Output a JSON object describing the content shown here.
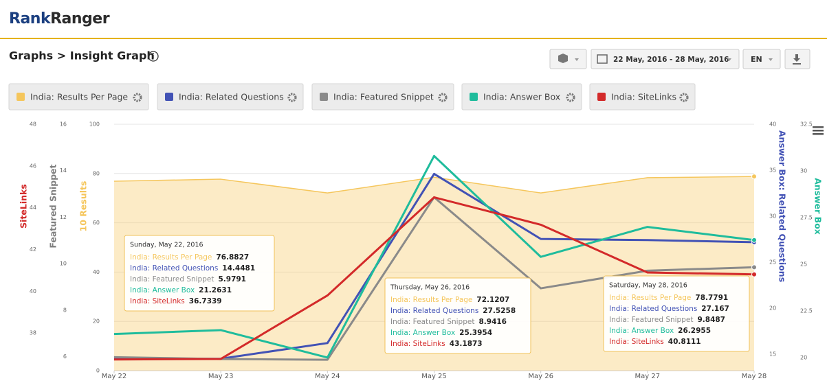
{
  "header": {
    "logo_first": "Rank",
    "logo_second": "Ranger",
    "breadcrumb": "Graphs > Insight Graph",
    "date_range": "22 May, 2016 - 28 May, 2016",
    "language": "EN"
  },
  "chart_data": {
    "type": "line",
    "categories": [
      "May 22",
      "May 23",
      "May 24",
      "May 25",
      "May 26",
      "May 27",
      "May 28"
    ],
    "axes": [
      {
        "title": "SiteLinks",
        "side": "left",
        "color": "#d32a2a",
        "lim": [
          36.2,
          48
        ],
        "ticks": [
          38,
          40,
          42,
          44,
          46,
          48
        ]
      },
      {
        "title": "Featured Snippet",
        "side": "left",
        "color": "#7f7f7f",
        "lim": [
          5.4,
          16
        ],
        "ticks": [
          6,
          8,
          10,
          12,
          14,
          16
        ]
      },
      {
        "title": "10 Results",
        "side": "left",
        "color": "#f5c65c",
        "lim": [
          0,
          100
        ],
        "ticks": [
          0,
          20,
          40,
          60,
          80,
          100
        ],
        "grid": true
      },
      {
        "title": "Answer Box: Related Questions",
        "side": "right",
        "color": "#4252b5",
        "lim": [
          13.2,
          40
        ],
        "ticks": [
          15,
          20,
          25,
          30,
          35,
          40
        ]
      },
      {
        "title": "Answer Box",
        "side": "right",
        "color": "#1fbc9c",
        "lim": [
          19.3,
          32.5
        ],
        "ticks": [
          20,
          22.5,
          25,
          27.5,
          30,
          32.5
        ]
      }
    ],
    "series": [
      {
        "name": "India: Results Per Page",
        "color": "#f5c65c",
        "axis": 2,
        "area": true,
        "values": [
          76.8827,
          77.7,
          72.1,
          78.5,
          72.1207,
          78.3,
          78.7791
        ]
      },
      {
        "name": "India: Related Questions",
        "color": "#4252b5",
        "axis": 3,
        "values": [
          14.4481,
          14.5,
          16.2,
          34.6,
          27.5258,
          27.4,
          27.167
        ]
      },
      {
        "name": "India: Featured Snippet",
        "color": "#8a8a8a",
        "axis": 1,
        "values": [
          5.9791,
          5.9,
          5.87,
          12.86,
          8.9416,
          9.7,
          9.8487
        ]
      },
      {
        "name": "India: Answer Box",
        "color": "#1fbc9c",
        "axis": 4,
        "values": [
          21.2631,
          21.47,
          20.0,
          30.8,
          25.3954,
          27.0,
          26.2955
        ]
      },
      {
        "name": "India: SiteLinks",
        "color": "#d32a2a",
        "axis": 0,
        "values": [
          36.7339,
          36.76,
          39.8,
          44.5,
          43.1873,
          40.9,
          40.8111
        ]
      }
    ],
    "tooltips": [
      {
        "date": "Sunday, May 22, 2016"
      },
      {
        "date": "Thursday, May 26, 2016"
      },
      {
        "date": "Saturday, May 28, 2016"
      }
    ]
  }
}
